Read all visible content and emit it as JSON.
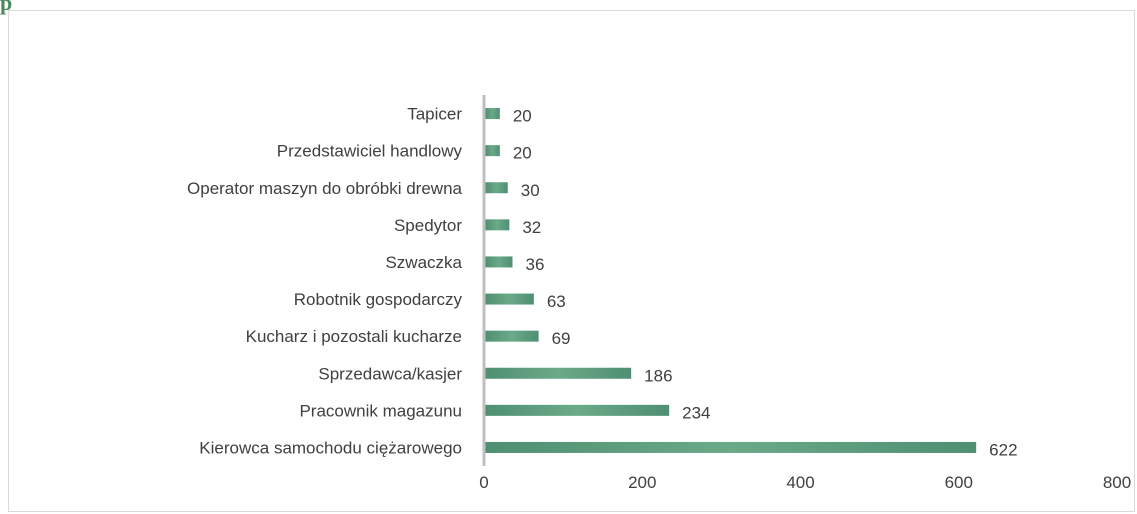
{
  "page": {
    "corner_glyph": "p"
  },
  "chart_data": {
    "type": "bar",
    "orientation": "horizontal",
    "categories": [
      "Kierowca samochodu ciężarowego",
      "Pracownik magazunu",
      "Sprzedawca/kasjer",
      "Kucharz i pozostali kucharze",
      "Robotnik gospodarczy",
      "Szwaczka",
      "Spedytor",
      "Operator maszyn do obróbki drewna",
      "Przedstawiciel handlowy",
      "Tapicer"
    ],
    "values": [
      622,
      234,
      186,
      69,
      63,
      36,
      32,
      30,
      20,
      20
    ],
    "xlim": [
      0,
      800
    ],
    "x_ticks": [
      0,
      200,
      400,
      600,
      800
    ],
    "title": "",
    "xlabel": "",
    "ylabel": "",
    "grid": false,
    "legend": "none",
    "bar_color": "#6aaa88",
    "bar_color_dark": "#4f8f72",
    "axis_color": "#bfbfbf"
  }
}
